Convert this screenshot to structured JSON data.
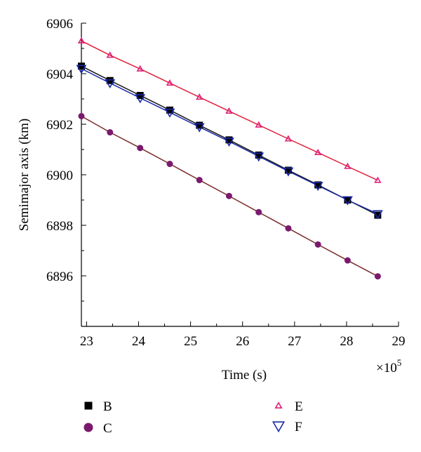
{
  "chart_data": {
    "type": "line",
    "xlabel": "Time (s)",
    "ylabel": "Semimajor axis (km)",
    "x_multiplier": "×10",
    "x_multiplier_exp": "5",
    "xlim": [
      22.9,
      29
    ],
    "ylim": [
      6894,
      6906
    ],
    "x_ticks": [
      23,
      24,
      25,
      26,
      27,
      28,
      29
    ],
    "y_ticks": [
      6896,
      6898,
      6900,
      6902,
      6904,
      6906
    ],
    "grid": false,
    "legend_position": "bottom",
    "series": [
      {
        "name": "B",
        "marker": "square",
        "color": "#000000",
        "line_color": "#1a1a1a",
        "x": [
          22.9,
          23.45,
          24.03,
          24.6,
          25.17,
          25.74,
          26.31,
          26.88,
          27.45,
          28.02,
          28.6
        ],
        "y": [
          6904.3,
          6903.73,
          6903.14,
          6902.56,
          6901.96,
          6901.38,
          6900.78,
          6900.18,
          6899.6,
          6899.0,
          6898.4
        ]
      },
      {
        "name": "C",
        "marker": "circle",
        "color": "#7a1a6e",
        "line_color": "#7a2a2a",
        "x": [
          22.9,
          23.45,
          24.03,
          24.6,
          25.17,
          25.74,
          26.31,
          26.88,
          27.45,
          28.02,
          28.6
        ],
        "y": [
          6902.32,
          6901.68,
          6901.06,
          6900.43,
          6899.79,
          6899.16,
          6898.52,
          6897.88,
          6897.24,
          6896.61,
          6895.98
        ]
      },
      {
        "name": "E",
        "marker": "triangle-up",
        "color": "#e0207a",
        "line_color": "#e0203a",
        "x": [
          22.9,
          23.45,
          24.03,
          24.6,
          25.17,
          25.74,
          26.31,
          26.88,
          27.45,
          28.02,
          28.6
        ],
        "y": [
          6905.3,
          6904.73,
          6904.19,
          6903.63,
          6903.07,
          6902.52,
          6901.97,
          6901.42,
          6900.88,
          6900.33,
          6899.78
        ]
      },
      {
        "name": "F",
        "marker": "triangle-down",
        "color": "#1a2aa8",
        "line_color": "#1a2aa8",
        "x": [
          22.9,
          23.45,
          24.03,
          24.6,
          25.17,
          25.74,
          26.31,
          26.88,
          27.45,
          28.02,
          28.6
        ],
        "y": [
          6904.2,
          6903.63,
          6903.04,
          6902.47,
          6901.89,
          6901.32,
          6900.73,
          6900.14,
          6899.57,
          6899.0,
          6898.45
        ]
      }
    ]
  }
}
